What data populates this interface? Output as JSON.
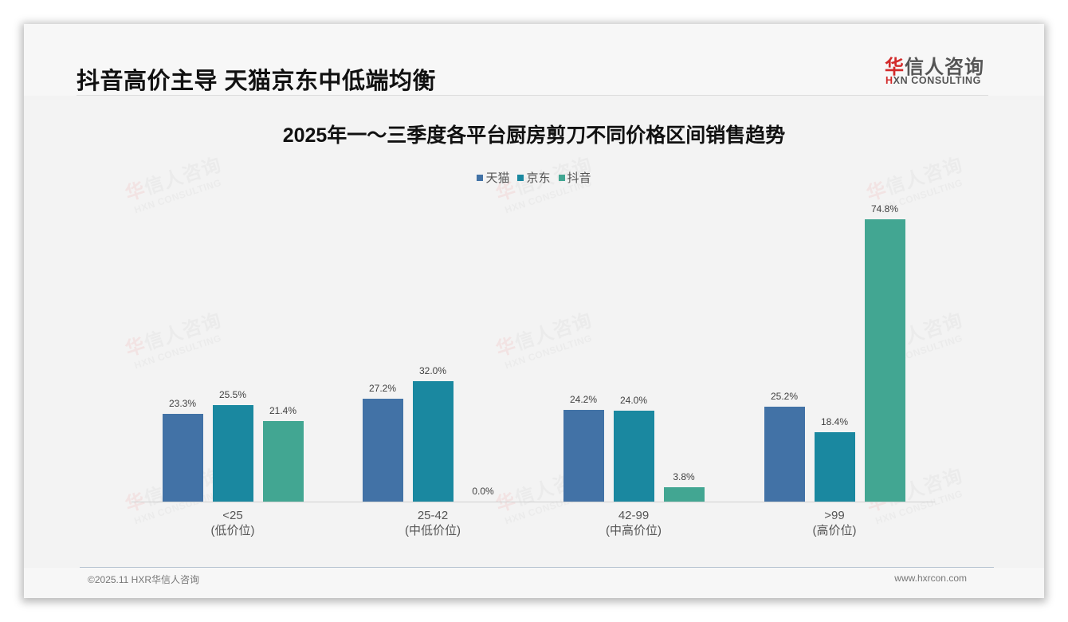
{
  "header": {
    "title": "抖音高价主导 天猫京东中低端均衡",
    "logo": {
      "cn_first": "华",
      "cn_rest": "信人咨询",
      "en_first": "H",
      "en_rest": "XN CONSULTING"
    }
  },
  "watermark": {
    "cn_first": "华",
    "cn_rest": "信人咨询",
    "en": "HXN CONSULTING"
  },
  "colors": {
    "tmall": "#4272a6",
    "jd": "#1a88a0",
    "douyin": "#42a692",
    "baseline": "#d0d0d0",
    "background": "#f3f3f3"
  },
  "chart_data": {
    "type": "bar",
    "title": "2025年一～三季度各平台厨房剪刀不同价格区间销售趋势",
    "categories": [
      "<25\n(低价位)",
      "25-42\n(中低价位)",
      "42-99\n(中高价位)",
      ">99\n(高价位)"
    ],
    "category_lines": [
      [
        "<25",
        "(低价位)"
      ],
      [
        "25-42",
        "(中低价位)"
      ],
      [
        "42-99",
        "(中高价位)"
      ],
      [
        ">99",
        "(高价位)"
      ]
    ],
    "series": [
      {
        "name": "天猫",
        "color": "#4272a6",
        "values": [
          23.3,
          27.2,
          24.2,
          25.2
        ],
        "labels": [
          "23.3%",
          "27.2%",
          "24.2%",
          "25.2%"
        ]
      },
      {
        "name": "京东",
        "color": "#1a88a0",
        "values": [
          25.5,
          32.0,
          24.0,
          18.4
        ],
        "labels": [
          "25.5%",
          "32.0%",
          "24.0%",
          "18.4%"
        ]
      },
      {
        "name": "抖音",
        "color": "#42a692",
        "values": [
          21.4,
          0.0,
          3.8,
          74.8
        ],
        "labels": [
          "21.4%",
          "0.0%",
          "3.8%",
          "74.8%"
        ]
      }
    ],
    "xlabel": "",
    "ylabel": "",
    "ylim": [
      0,
      80
    ],
    "grid": false,
    "y_axis_visible": false,
    "legend_position": "top",
    "data_labels": true,
    "unit": "%"
  },
  "footer": {
    "copyright": "©2025.11 HXR华信人咨询",
    "website": "www.hxrcon.com"
  }
}
